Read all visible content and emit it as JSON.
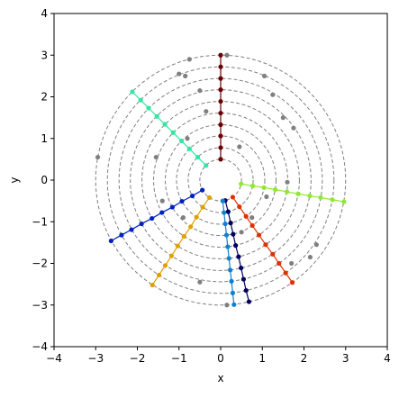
{
  "chart_data": {
    "type": "scatter",
    "xlabel": "x",
    "ylabel": "y",
    "xlim": [
      -4,
      4
    ],
    "ylim": [
      -4,
      4
    ],
    "xticks": [
      {
        "value": -4,
        "label": "−4"
      },
      {
        "value": -3,
        "label": "−3"
      },
      {
        "value": -2,
        "label": "−2"
      },
      {
        "value": -1,
        "label": "−1"
      },
      0,
      1,
      2,
      3,
      4
    ],
    "yticks": [
      {
        "value": -4,
        "label": "−4"
      },
      {
        "value": -3,
        "label": "−3"
      },
      {
        "value": -2,
        "label": "−2"
      },
      {
        "value": -1,
        "label": "−1"
      },
      0,
      1,
      2,
      3,
      4
    ],
    "circle_radii": [
      0.5,
      0.78,
      1.06,
      1.33,
      1.61,
      1.89,
      2.17,
      2.44,
      2.72,
      3.0
    ],
    "circle_color": "#808080",
    "series": [
      {
        "color": "#808080",
        "line": false,
        "x": [
          0.15,
          -0.75,
          -1.0,
          -0.85,
          1.05,
          1.25,
          1.5,
          1.75,
          -0.5,
          -0.35,
          -0.8,
          0.45,
          -2.95,
          -1.55,
          -1.4,
          -0.9,
          1.6,
          2.3,
          2.15,
          1.7,
          0.5,
          -0.5,
          0.15,
          1.1,
          0.75
        ],
        "y": [
          3.0,
          2.9,
          2.55,
          2.5,
          2.5,
          2.05,
          1.5,
          1.25,
          2.15,
          1.65,
          1.0,
          0.8,
          0.55,
          0.55,
          -0.5,
          -0.9,
          -0.05,
          -1.55,
          -1.85,
          -2.0,
          -1.25,
          -2.45,
          -3.0,
          -0.4,
          -0.9
        ]
      },
      {
        "color": "#6a0000",
        "line": true,
        "x": [
          0,
          0,
          0,
          0,
          0,
          0,
          0,
          0,
          0,
          0
        ],
        "y": [
          0.5,
          0.78,
          1.06,
          1.33,
          1.61,
          1.89,
          2.17,
          2.44,
          2.72,
          3.0
        ]
      },
      {
        "color": "#30e8a0",
        "line": true,
        "x": [
          -0.35,
          -0.55,
          -0.75,
          -0.94,
          -1.14,
          -1.34,
          -1.53,
          -1.73,
          -1.92,
          -2.12
        ],
        "y": [
          0.35,
          0.55,
          0.75,
          0.94,
          1.14,
          1.34,
          1.53,
          1.73,
          1.92,
          2.12
        ]
      },
      {
        "color": "#90e830",
        "line": true,
        "x": [
          0.49,
          0.77,
          1.04,
          1.31,
          1.59,
          1.86,
          2.14,
          2.4,
          2.68,
          2.96
        ],
        "y": [
          -0.09,
          -0.14,
          -0.18,
          -0.23,
          -0.28,
          -0.33,
          -0.38,
          -0.42,
          -0.47,
          -0.52
        ]
      },
      {
        "color": "#e03000",
        "line": true,
        "x": [
          0.29,
          0.45,
          0.61,
          0.76,
          0.92,
          1.08,
          1.25,
          1.4,
          1.56,
          1.72
        ],
        "y": [
          -0.41,
          -0.64,
          -0.87,
          -1.09,
          -1.32,
          -1.55,
          -1.78,
          -2.0,
          -2.23,
          -2.46
        ]
      },
      {
        "color": "#000060",
        "line": true,
        "x": [
          0.11,
          0.18,
          0.24,
          0.3,
          0.36,
          0.43,
          0.49,
          0.55,
          0.61,
          0.68
        ],
        "y": [
          -0.49,
          -0.76,
          -1.03,
          -1.3,
          -1.57,
          -1.84,
          -2.11,
          -2.38,
          -2.65,
          -2.92
        ]
      },
      {
        "color": "#1080d0",
        "line": true,
        "x": [
          0.05,
          0.08,
          0.11,
          0.14,
          0.17,
          0.2,
          0.23,
          0.26,
          0.29,
          0.32
        ],
        "y": [
          -0.5,
          -0.78,
          -1.05,
          -1.32,
          -1.6,
          -1.88,
          -2.16,
          -2.43,
          -2.71,
          -2.99
        ]
      },
      {
        "color": "#e0a000",
        "line": true,
        "x": [
          -0.27,
          -0.43,
          -0.58,
          -0.72,
          -0.88,
          -1.03,
          -1.18,
          -1.33,
          -1.48,
          -1.64
        ],
        "y": [
          -0.42,
          -0.65,
          -0.89,
          -1.12,
          -1.35,
          -1.58,
          -1.82,
          -2.05,
          -2.28,
          -2.52
        ]
      },
      {
        "color": "#0020c0",
        "line": true,
        "x": [
          -0.44,
          -0.68,
          -0.93,
          -1.16,
          -1.41,
          -1.65,
          -1.9,
          -2.14,
          -2.38,
          -2.63
        ],
        "y": [
          -0.24,
          -0.38,
          -0.51,
          -0.65,
          -0.78,
          -0.92,
          -1.05,
          -1.19,
          -1.32,
          -1.46
        ]
      }
    ]
  }
}
